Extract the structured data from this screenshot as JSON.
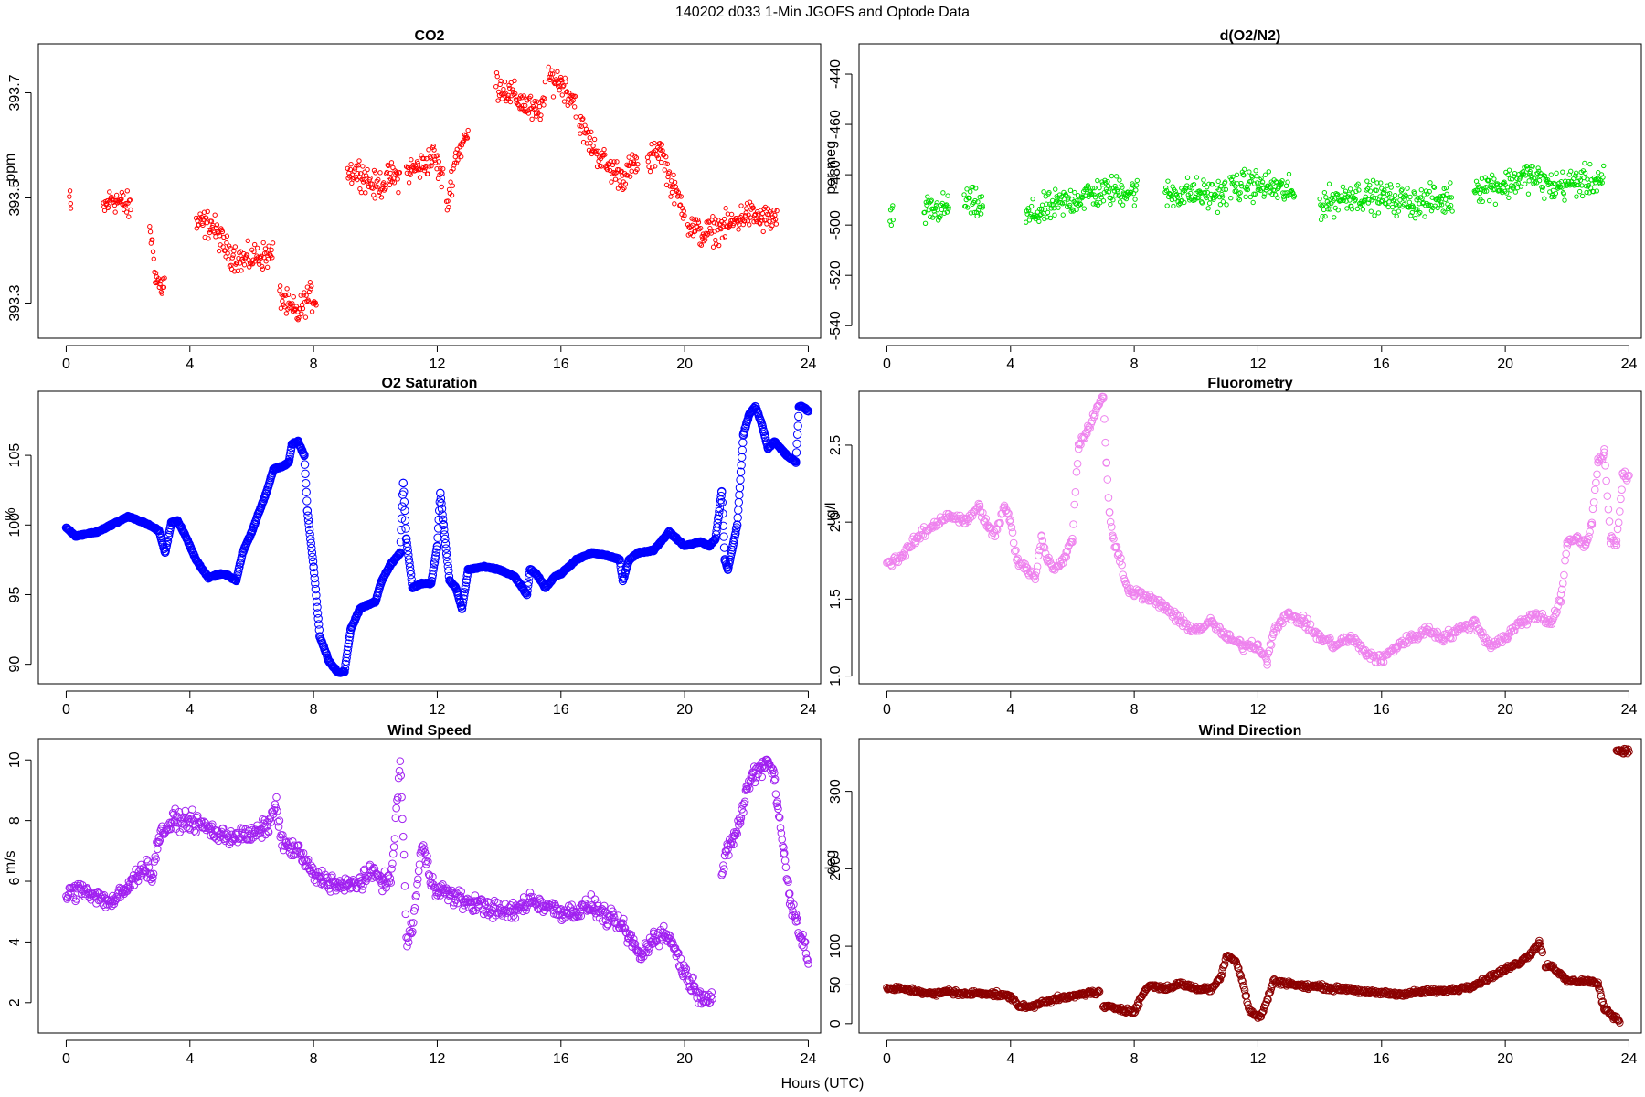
{
  "figure": {
    "title": "140202   d033   1-Min  JGOFS and Optode Data",
    "xlabel": "Hours (UTC)"
  },
  "chart_data": [
    {
      "type": "scatter",
      "title": "CO2",
      "ylabel": "ppm",
      "color": "#ff0000",
      "xlim": [
        -0.9,
        24.4
      ],
      "ylim": [
        393.233,
        393.793
      ],
      "xticks": [
        0,
        4,
        8,
        12,
        16,
        20,
        24
      ],
      "yticks": [
        393.3,
        393.5,
        393.7
      ],
      "ytick_labels": [
        "393.3",
        "393.5",
        "393.7"
      ],
      "segments": [
        {
          "x": [
            0.1,
            0.15
          ],
          "y": [
            393.5,
            393.48
          ]
        },
        {
          "x": [
            1.2,
            1.5,
            1.8,
            2.1
          ],
          "y": [
            393.48,
            393.5,
            393.49,
            393.48
          ]
        },
        {
          "x": [
            2.7,
            2.9,
            3.05,
            3.2
          ],
          "y": [
            393.45,
            393.35,
            393.33,
            393.34
          ]
        },
        {
          "x": [
            4.2,
            4.7,
            5.2,
            5.7,
            6.2,
            6.7
          ],
          "y": [
            393.45,
            393.45,
            393.4,
            393.38,
            393.39,
            393.39
          ]
        },
        {
          "x": [
            6.9,
            7.2,
            7.5,
            7.8,
            8.1
          ],
          "y": [
            393.32,
            393.29,
            393.28,
            393.31,
            393.31
          ]
        },
        {
          "x": [
            9.1,
            9.5,
            10.0,
            10.5,
            10.8
          ],
          "y": [
            393.55,
            393.55,
            393.52,
            393.54,
            393.54
          ]
        },
        {
          "x": [
            11.0,
            11.5,
            11.9,
            12.2
          ],
          "y": [
            393.55,
            393.56,
            393.58,
            393.53
          ]
        },
        {
          "x": [
            12.3,
            12.6,
            13.0
          ],
          "y": [
            393.48,
            393.58,
            393.62
          ]
        },
        {
          "x": [
            13.9,
            14.3,
            14.8,
            15.2,
            15.5
          ],
          "y": [
            393.72,
            393.7,
            393.68,
            393.66,
            393.69
          ]
        },
        {
          "x": [
            15.6,
            16.0,
            16.5
          ],
          "y": [
            393.73,
            393.72,
            393.68
          ]
        },
        {
          "x": [
            16.6,
            17.0,
            17.5,
            18.0,
            18.5
          ],
          "y": [
            393.64,
            393.6,
            393.56,
            393.54,
            393.57
          ]
        },
        {
          "x": [
            18.8,
            19.2,
            19.6,
            20.0
          ],
          "y": [
            393.56,
            393.6,
            393.52,
            393.48
          ]
        },
        {
          "x": [
            20.1,
            20.6,
            21.0,
            21.5,
            22.0,
            22.5,
            23.0
          ],
          "y": [
            393.45,
            393.43,
            393.44,
            393.45,
            393.47,
            393.46,
            393.46
          ]
        }
      ]
    },
    {
      "type": "scatter",
      "title": "d(O2/N2)",
      "ylabel": "per meg",
      "color": "#00dd00",
      "xlim": [
        -0.9,
        24.4
      ],
      "ylim": [
        -545,
        -428
      ],
      "xticks": [
        0,
        4,
        8,
        12,
        16,
        20,
        24
      ],
      "yticks": [
        -540,
        -520,
        -500,
        -480,
        -460,
        -440
      ],
      "ytick_labels": [
        "-540",
        "-520",
        "-500",
        "-480",
        "-460",
        "-440"
      ],
      "segments": [
        {
          "x": [
            0.1,
            0.2
          ],
          "y": [
            -497,
            -498
          ]
        },
        {
          "x": [
            1.2,
            2.0
          ],
          "y": [
            -495,
            -493
          ]
        },
        {
          "x": [
            2.5,
            3.1
          ],
          "y": [
            -490,
            -493
          ]
        },
        {
          "x": [
            4.5,
            5.5,
            6.5,
            7.5,
            8.1
          ],
          "y": [
            -497,
            -492,
            -488,
            -486,
            -487
          ]
        },
        {
          "x": [
            9.0,
            9.8,
            10.5,
            11.0
          ],
          "y": [
            -488,
            -487,
            -488,
            -487
          ]
        },
        {
          "x": [
            11.1,
            11.8,
            12.5,
            13.2
          ],
          "y": [
            -485,
            -484,
            -485,
            -488
          ]
        },
        {
          "x": [
            14.0,
            15.0,
            16.0,
            17.0,
            18.0,
            18.3
          ],
          "y": [
            -492,
            -488,
            -489,
            -491,
            -490,
            -489
          ]
        },
        {
          "x": [
            19.0,
            20.0,
            20.8,
            21.5,
            22.3,
            23.2
          ],
          "y": [
            -485,
            -484,
            -480,
            -485,
            -483,
            -482
          ]
        }
      ]
    },
    {
      "type": "scatter",
      "title": "O2 Saturation",
      "ylabel": "%",
      "color": "#0000ff",
      "xlim": [
        -0.9,
        24.4
      ],
      "ylim": [
        88.6,
        109.6
      ],
      "xticks": [
        0,
        4,
        8,
        12,
        16,
        20,
        24
      ],
      "yticks": [
        90,
        95,
        100,
        105
      ],
      "ytick_labels": [
        "90",
        "95",
        "100",
        "105"
      ],
      "segments": [
        {
          "x": [
            0,
            0.3,
            1.0,
            2.0,
            2.5,
            3.0,
            3.2,
            3.4,
            3.6,
            3.8,
            4.2,
            4.6,
            5.0,
            5.2,
            5.5,
            5.7,
            6.0,
            6.5,
            6.7,
            7.0,
            7.2,
            7.3,
            7.5,
            7.7,
            7.8,
            8.0,
            8.2,
            8.5,
            8.8,
            9.0,
            9.2,
            9.5,
            10.0,
            10.2,
            10.5,
            10.8,
            10.9,
            11.0,
            11.2,
            11.5,
            11.8,
            12.0,
            12.1,
            12.2,
            12.4,
            12.6,
            12.8,
            13.0,
            13.5,
            14.0,
            14.5,
            14.9,
            15.0,
            15.2,
            15.5,
            15.8,
            16.0,
            16.5,
            17.0,
            17.5,
            17.9,
            18.0,
            18.2,
            18.5,
            19.0,
            19.5,
            20.0,
            20.5,
            20.8,
            21.0,
            21.2,
            21.3,
            21.4,
            21.7,
            21.9,
            22.1,
            22.3,
            22.5,
            22.7,
            22.9,
            23.1,
            23.3,
            23.6,
            23.7,
            23.8,
            24.0
          ],
          "y": [
            99.8,
            99.2,
            99.5,
            100.6,
            100.2,
            99.6,
            98.0,
            100.2,
            100.3,
            99.5,
            97.5,
            96.2,
            96.5,
            96.4,
            96.0,
            98.0,
            99.5,
            102.5,
            104.0,
            104.2,
            104.5,
            105.8,
            106.0,
            105.0,
            101.0,
            97.0,
            92.0,
            90.2,
            89.4,
            89.5,
            92.5,
            94.0,
            94.5,
            96.0,
            97.2,
            98.0,
            103.0,
            99.0,
            95.5,
            95.8,
            95.8,
            98.5,
            102.3,
            100.0,
            96.0,
            95.5,
            94.0,
            96.8,
            97.0,
            96.8,
            96.3,
            95.0,
            96.8,
            96.5,
            95.5,
            96.3,
            96.5,
            97.5,
            98.0,
            97.8,
            97.5,
            96.0,
            97.5,
            98.0,
            98.2,
            99.5,
            98.5,
            98.8,
            98.5,
            99.0,
            102.4,
            97.5,
            96.8,
            100.0,
            106.5,
            108.0,
            108.5,
            107.2,
            105.5,
            106.0,
            105.5,
            105.0,
            104.5,
            108.5,
            108.5,
            108.2
          ]
        }
      ]
    },
    {
      "type": "scatter",
      "title": "Fluorometry",
      "ylabel": "ug/l",
      "color": "#ee82ee",
      "xlim": [
        -0.9,
        24.4
      ],
      "ylim": [
        0.95,
        2.85
      ],
      "xticks": [
        0,
        4,
        8,
        12,
        16,
        20,
        24
      ],
      "yticks": [
        1.0,
        1.5,
        2.0,
        2.5
      ],
      "ytick_labels": [
        "1.0",
        "1.5",
        "2.0",
        "2.5"
      ],
      "segments": [
        {
          "x": [
            0,
            0.5,
            1.0,
            1.5,
            2.0,
            2.5,
            3.0,
            3.3,
            3.5,
            3.8,
            4.0,
            4.2,
            4.5,
            4.8,
            5.0,
            5.2,
            5.5,
            5.8,
            6.0,
            6.2,
            6.5,
            6.8,
            7.0,
            7.1,
            7.2,
            7.3,
            7.5,
            7.8,
            8.0,
            8.5,
            9.0,
            9.5,
            10.0,
            10.5,
            11.0,
            11.5,
            12.0,
            12.3,
            12.5,
            13.0,
            13.5,
            14.0,
            14.5,
            15.0,
            15.5,
            16.0,
            16.5,
            17.0,
            17.5,
            18.0,
            18.5,
            19.0,
            19.5,
            20.0,
            20.5,
            21.0,
            21.5,
            21.8,
            22.0,
            22.3,
            22.6,
            22.8,
            23.0,
            23.2,
            23.4,
            23.6,
            23.8,
            24.0
          ],
          "y": [
            1.73,
            1.78,
            1.9,
            1.98,
            2.05,
            2.0,
            2.1,
            1.95,
            1.92,
            2.1,
            2.0,
            1.75,
            1.7,
            1.65,
            1.9,
            1.75,
            1.7,
            1.8,
            1.9,
            2.5,
            2.6,
            2.75,
            2.8,
            2.4,
            2.05,
            1.9,
            1.8,
            1.55,
            1.55,
            1.5,
            1.45,
            1.35,
            1.3,
            1.35,
            1.25,
            1.2,
            1.2,
            1.1,
            1.3,
            1.4,
            1.35,
            1.25,
            1.2,
            1.25,
            1.15,
            1.1,
            1.2,
            1.25,
            1.3,
            1.25,
            1.3,
            1.35,
            1.2,
            1.25,
            1.35,
            1.4,
            1.35,
            1.5,
            1.85,
            1.9,
            1.85,
            2.0,
            2.4,
            2.45,
            1.9,
            1.85,
            2.3,
            2.3
          ]
        }
      ]
    },
    {
      "type": "scatter",
      "title": "Wind Speed",
      "ylabel": "m/s",
      "color": "#a020f0",
      "xlim": [
        -0.9,
        24.4
      ],
      "ylim": [
        1.0,
        10.7
      ],
      "xticks": [
        0,
        4,
        8,
        12,
        16,
        20,
        24
      ],
      "yticks": [
        2,
        4,
        6,
        8,
        10
      ],
      "ytick_labels": [
        "2",
        "4",
        "6",
        "8",
        "10"
      ],
      "segments": [
        {
          "x": [
            0,
            0.5,
            1.0,
            1.5,
            2.0,
            2.5,
            2.8,
            3.0,
            3.5,
            4.0,
            4.5,
            5.0,
            5.5,
            6.0,
            6.5,
            6.8,
            7.0,
            7.5,
            8.0,
            8.5,
            9.0,
            9.5,
            10.0,
            10.3,
            10.5,
            10.7,
            10.8,
            10.9,
            11.0,
            11.2,
            11.5,
            11.7,
            11.8,
            12.0,
            12.5,
            13.0,
            13.5,
            14.0,
            14.5,
            15.0,
            15.5,
            16.0,
            16.5,
            17.0,
            17.5,
            18.0,
            18.3,
            18.6,
            19.0,
            19.5,
            20.0,
            20.3,
            20.6,
            20.9
          ],
          "y": [
            5.5,
            5.8,
            5.5,
            5.3,
            5.8,
            6.5,
            6.2,
            7.5,
            8.0,
            8.0,
            7.8,
            7.5,
            7.5,
            7.5,
            7.8,
            8.5,
            7.2,
            7.0,
            6.2,
            6.0,
            5.8,
            6.0,
            6.3,
            6.0,
            6.0,
            8.5,
            10.1,
            7.5,
            4.0,
            4.5,
            7.2,
            6.5,
            6.0,
            5.8,
            5.5,
            5.3,
            5.2,
            5.0,
            5.0,
            5.4,
            5.2,
            5.0,
            5.0,
            5.2,
            4.8,
            4.5,
            4.0,
            3.5,
            4.2,
            4.2,
            3.0,
            2.5,
            2.2,
            2.1
          ]
        },
        {
          "x": [
            21.2,
            21.4,
            21.6,
            21.8,
            22.0,
            22.2,
            22.5,
            22.7,
            22.9,
            23.0,
            23.2,
            23.4,
            23.6,
            23.8,
            24.0
          ],
          "y": [
            6.3,
            7.0,
            7.5,
            8.0,
            9.0,
            9.5,
            9.8,
            10.0,
            9.5,
            8.5,
            7.0,
            5.5,
            4.8,
            4.0,
            3.5
          ]
        }
      ]
    },
    {
      "type": "scatter",
      "title": "Wind Direction",
      "ylabel": "deg",
      "color": "#8b0000",
      "xlim": [
        -0.9,
        24.4
      ],
      "ylim": [
        -12,
        368
      ],
      "xticks": [
        0,
        4,
        8,
        12,
        16,
        20,
        24
      ],
      "yticks": [
        0,
        50,
        100,
        200,
        300
      ],
      "ytick_labels": [
        "0",
        "50",
        "100",
        "200",
        "300"
      ],
      "segments": [
        {
          "x": [
            0,
            0.5,
            1.0,
            1.5,
            2.0,
            2.5,
            3.0,
            3.5,
            4.0,
            4.3,
            4.7,
            5.0,
            5.5,
            6.0,
            6.5,
            6.9
          ],
          "y": [
            45,
            45,
            42,
            38,
            42,
            38,
            40,
            38,
            35,
            22,
            22,
            28,
            32,
            35,
            40,
            40
          ]
        },
        {
          "x": [
            7.0,
            7.5,
            8.0,
            8.3,
            8.5,
            9.0,
            9.5,
            10.0,
            10.5,
            10.8,
            11.0,
            11.3,
            11.5,
            11.7,
            11.9,
            12.1,
            12.3,
            12.5,
            13.0,
            13.5,
            14.0,
            14.5,
            15.0,
            15.5,
            16.0,
            16.5,
            17.0,
            17.5,
            18.0,
            18.5,
            19.0,
            19.5,
            20.0,
            20.5,
            20.8,
            21.0,
            21.1,
            21.2
          ],
          "y": [
            22,
            20,
            15,
            40,
            50,
            45,
            52,
            45,
            45,
            60,
            90,
            80,
            55,
            20,
            10,
            10,
            30,
            55,
            52,
            48,
            48,
            45,
            45,
            40,
            40,
            38,
            40,
            42,
            42,
            45,
            50,
            60,
            70,
            80,
            90,
            100,
            105,
            90
          ]
        },
        {
          "x": [
            21.3,
            21.5,
            22.0,
            22.5,
            22.8,
            23.0,
            23.2,
            23.5,
            23.7
          ],
          "y": [
            75,
            75,
            55,
            55,
            55,
            50,
            20,
            10,
            3
          ]
        },
        {
          "x": [
            23.6,
            23.8,
            24.0
          ],
          "y": [
            353,
            352,
            352
          ]
        }
      ]
    }
  ]
}
